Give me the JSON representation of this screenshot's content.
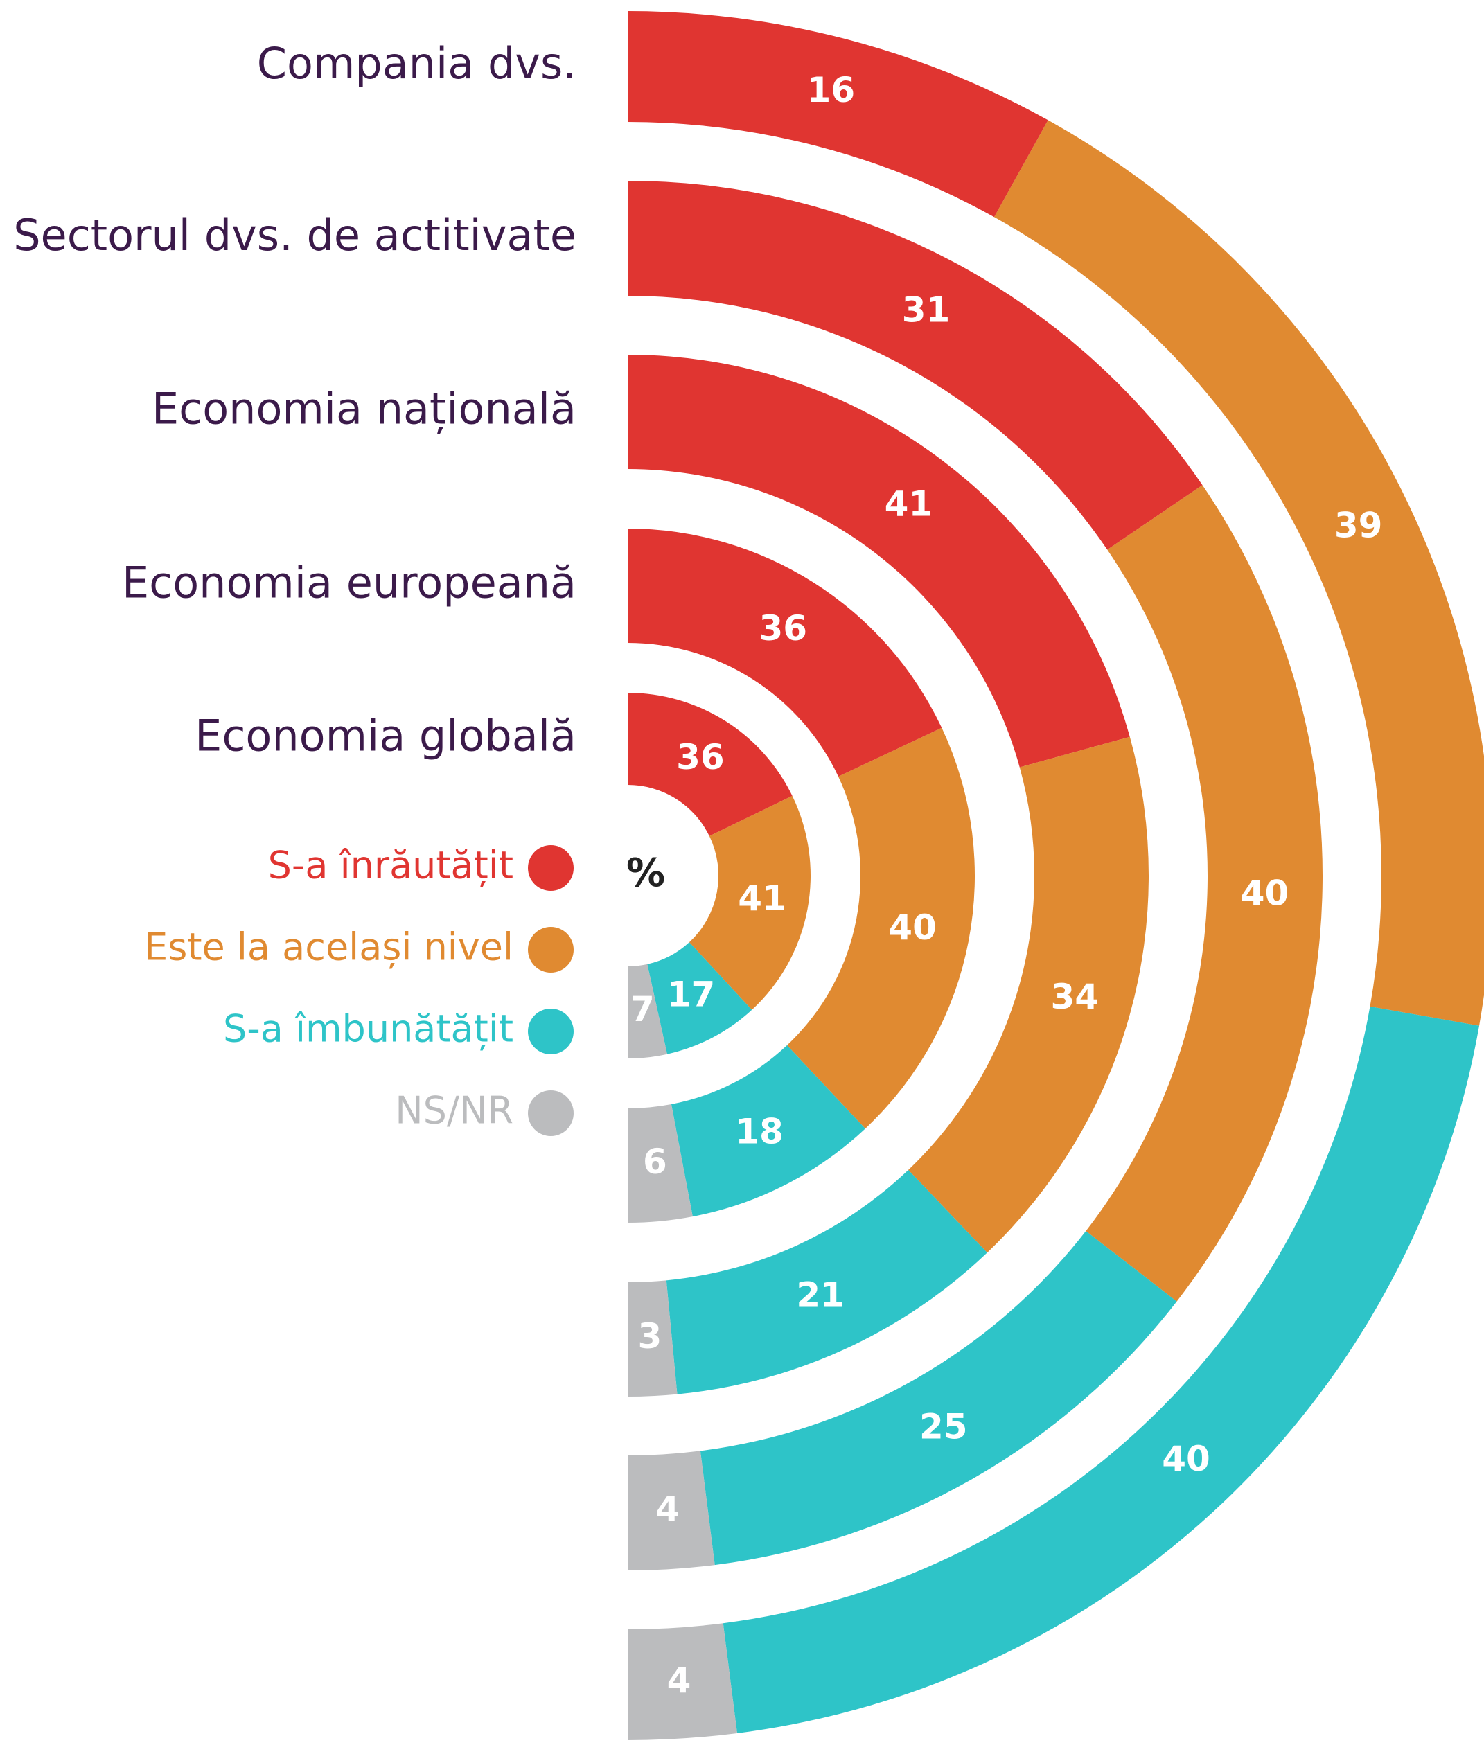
{
  "chart_data": {
    "type": "radial_stacked",
    "unit_label": "%",
    "categories": [
      "Compania dvs.",
      "Sectorul dvs. de actitivate",
      "Economia națională",
      "Economia europeană",
      "Economia  globală"
    ],
    "series": [
      {
        "name": "S-a înrăutățit",
        "color": "#e03531",
        "values": [
          16,
          31,
          41,
          36,
          36
        ]
      },
      {
        "name": "Este la același nivel",
        "color": "#e08a31",
        "values": [
          39,
          40,
          34,
          40,
          41
        ]
      },
      {
        "name": "S-a îmbunătățit",
        "color": "#2ec4c8",
        "values": [
          40,
          25,
          21,
          18,
          17
        ]
      },
      {
        "name": "NS/NR",
        "color": "#bbbcbe",
        "values": [
          4,
          4,
          3,
          6,
          7
        ]
      }
    ]
  }
}
